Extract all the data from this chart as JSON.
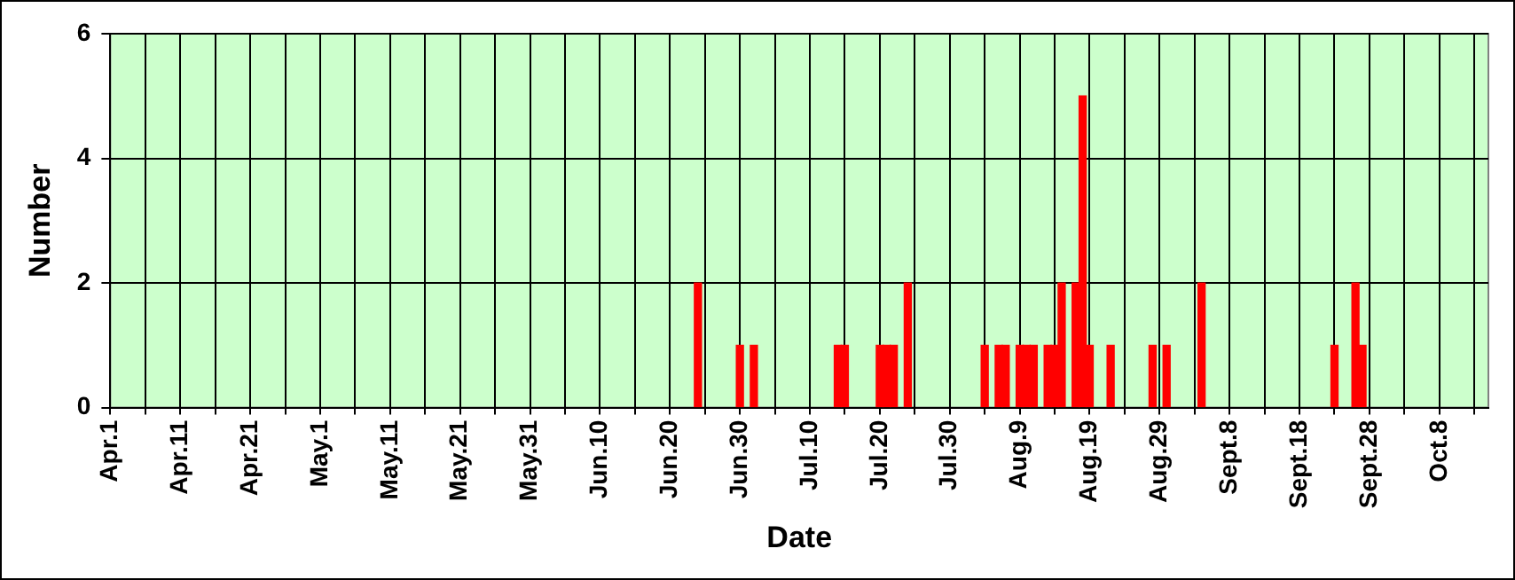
{
  "chart_data": {
    "type": "bar",
    "xlabel": "Date",
    "ylabel": "Number",
    "x": [
      "--06-24",
      "--06-30",
      "--07-02",
      "--07-14",
      "--07-15",
      "--07-20",
      "--07-21",
      "--07-22",
      "--07-24",
      "--08-04",
      "--08-06",
      "--08-07",
      "--08-09",
      "--08-10",
      "--08-11",
      "--08-13",
      "--08-14",
      "--08-15",
      "--08-17",
      "--08-18",
      "--08-19",
      "--08-22",
      "--08-28",
      "--08-30",
      "--09-04",
      "--09-23",
      "--09-26",
      "--09-27"
    ],
    "values": [
      2,
      1,
      1,
      1,
      1,
      1,
      1,
      1,
      2,
      1,
      1,
      1,
      1,
      1,
      1,
      1,
      1,
      2,
      2,
      5,
      1,
      1,
      1,
      1,
      2,
      1,
      2,
      1
    ],
    "color": "#ff0000",
    "xlim": [
      "--04-01",
      "--10-15"
    ],
    "xticks": [
      {
        "value": "--04-01",
        "label": "Apr.1"
      },
      {
        "value": "--04-06",
        "label": null
      },
      {
        "value": "--04-11",
        "label": "Apr.11"
      },
      {
        "value": "--04-16",
        "label": null
      },
      {
        "value": "--04-21",
        "label": "Apr.21"
      },
      {
        "value": "--04-26",
        "label": null
      },
      {
        "value": "--05-01",
        "label": "May.1"
      },
      {
        "value": "--05-06",
        "label": null
      },
      {
        "value": "--05-11",
        "label": "May.11"
      },
      {
        "value": "--05-16",
        "label": null
      },
      {
        "value": "--05-21",
        "label": "May.21"
      },
      {
        "value": "--05-26",
        "label": null
      },
      {
        "value": "--05-31",
        "label": "May.31"
      },
      {
        "value": "--06-05",
        "label": null
      },
      {
        "value": "--06-10",
        "label": "Jun.10"
      },
      {
        "value": "--06-15",
        "label": null
      },
      {
        "value": "--06-20",
        "label": "Jun.20"
      },
      {
        "value": "--06-25",
        "label": null
      },
      {
        "value": "--06-30",
        "label": "Jun.30"
      },
      {
        "value": "--07-05",
        "label": null
      },
      {
        "value": "--07-10",
        "label": "Jul.10"
      },
      {
        "value": "--07-15",
        "label": null
      },
      {
        "value": "--07-20",
        "label": "Jul.20"
      },
      {
        "value": "--07-25",
        "label": null
      },
      {
        "value": "--07-30",
        "label": "Jul.30"
      },
      {
        "value": "--08-04",
        "label": null
      },
      {
        "value": "--08-09",
        "label": "Aug.9"
      },
      {
        "value": "--08-14",
        "label": null
      },
      {
        "value": "--08-19",
        "label": "Aug.19"
      },
      {
        "value": "--08-24",
        "label": null
      },
      {
        "value": "--08-29",
        "label": "Aug.29"
      },
      {
        "value": "--09-03",
        "label": null
      },
      {
        "value": "--09-08",
        "label": "Sept.8"
      },
      {
        "value": "--09-13",
        "label": null
      },
      {
        "value": "--09-18",
        "label": "Sept.18"
      },
      {
        "value": "--09-23",
        "label": null
      },
      {
        "value": "--09-28",
        "label": "Sept.28"
      },
      {
        "value": "--10-03",
        "label": null
      },
      {
        "value": "--10-08",
        "label": "Oct.8"
      },
      {
        "value": "--10-13",
        "label": null
      }
    ],
    "ylim": [
      0,
      6
    ],
    "yticks": [
      0,
      2,
      4,
      6
    ],
    "grid": true,
    "legend": false
  }
}
